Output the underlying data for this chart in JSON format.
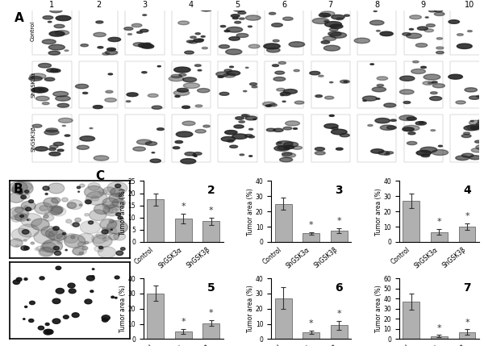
{
  "panel_C_title": "C",
  "panel_A_title": "A",
  "panel_B_title": "B",
  "categories": [
    "Control",
    "ShGSK3α",
    "ShGSK3β"
  ],
  "charts": [
    {
      "number": "2",
      "values": [
        17.5,
        9.5,
        8.5
      ],
      "errors": [
        2.5,
        2.0,
        1.5
      ],
      "ylim": [
        0,
        25
      ],
      "yticks": [
        0,
        5,
        10,
        15,
        20,
        25
      ],
      "ylabel": "Tumor area (%)",
      "asterisk": [
        false,
        true,
        true
      ]
    },
    {
      "number": "3",
      "values": [
        25.0,
        5.5,
        7.5
      ],
      "errors": [
        4.0,
        1.0,
        1.5
      ],
      "ylim": [
        0,
        40
      ],
      "yticks": [
        0,
        10,
        20,
        30,
        40
      ],
      "ylabel": "Tumor area (%)",
      "asterisk": [
        false,
        true,
        true
      ]
    },
    {
      "number": "4",
      "values": [
        27.0,
        6.5,
        10.0
      ],
      "errors": [
        5.0,
        2.0,
        2.0
      ],
      "ylim": [
        0,
        40
      ],
      "yticks": [
        0,
        10,
        20,
        30,
        40
      ],
      "ylabel": "Tumor area (%)",
      "asterisk": [
        false,
        true,
        true
      ]
    },
    {
      "number": "5",
      "values": [
        30.0,
        5.0,
        10.5
      ],
      "errors": [
        5.0,
        1.5,
        2.0
      ],
      "ylim": [
        0,
        40
      ],
      "yticks": [
        0,
        10,
        20,
        30,
        40
      ],
      "ylabel": "Tumor area (%)",
      "asterisk": [
        false,
        true,
        true
      ]
    },
    {
      "number": "6",
      "values": [
        27.0,
        4.5,
        9.0
      ],
      "errors": [
        7.0,
        1.0,
        3.0
      ],
      "ylim": [
        0,
        40
      ],
      "yticks": [
        0,
        10,
        20,
        30,
        40
      ],
      "ylabel": "Tumor area (%)",
      "asterisk": [
        false,
        true,
        true
      ]
    },
    {
      "number": "7",
      "values": [
        37.0,
        3.0,
        7.0
      ],
      "errors": [
        8.0,
        1.0,
        2.5
      ],
      "ylim": [
        0,
        60
      ],
      "yticks": [
        0,
        10,
        20,
        30,
        40,
        50,
        60
      ],
      "ylabel": "Tumor area (%)",
      "asterisk": [
        false,
        true,
        true
      ]
    }
  ],
  "bar_color": "#b0b0b0",
  "bar_edgecolor": "#555555",
  "background_color": "#ffffff",
  "ecolor": "#333333",
  "fig_width": 6.0,
  "fig_height": 4.29
}
